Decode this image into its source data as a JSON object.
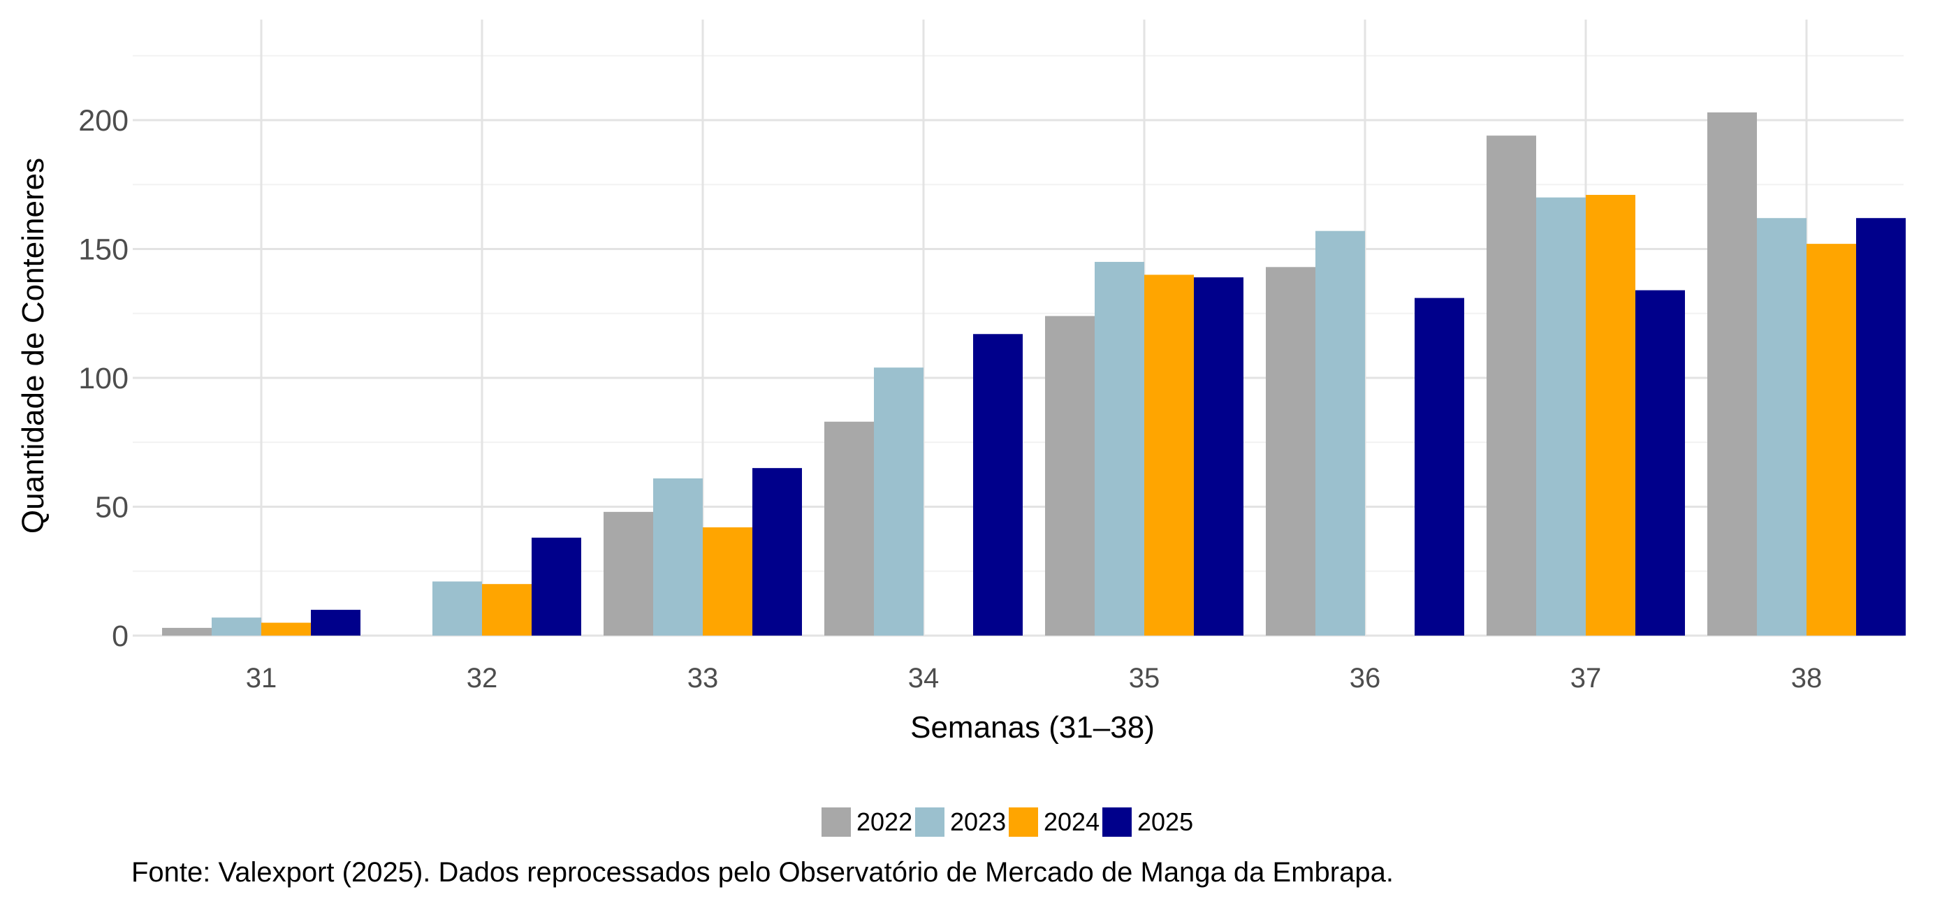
{
  "chart_data": {
    "type": "bar",
    "title": "",
    "xlabel": "Semanas (31–38)",
    "ylabel": "Quantidade de Conteineres",
    "categories": [
      "31",
      "32",
      "33",
      "34",
      "35",
      "36",
      "37",
      "38"
    ],
    "ylim": [
      0,
      230
    ],
    "yticks": [
      0,
      50,
      100,
      150,
      200
    ],
    "grid": true,
    "legend_position": "bottom",
    "series": [
      {
        "name": "2022",
        "color": "#A8A8A8",
        "values": [
          3,
          null,
          48,
          83,
          124,
          143,
          194,
          203
        ]
      },
      {
        "name": "2023",
        "color": "#9BC0CE",
        "values": [
          7,
          21,
          61,
          104,
          145,
          157,
          170,
          162
        ]
      },
      {
        "name": "2024",
        "color": "#FFA500",
        "values": [
          5,
          20,
          42,
          null,
          140,
          null,
          171,
          152
        ]
      },
      {
        "name": "2025",
        "color": "#00008B",
        "values": [
          10,
          38,
          65,
          117,
          139,
          131,
          134,
          162
        ]
      }
    ],
    "caption": "Fonte: Valexport (2025). Dados reprocessados pelo Observatório de Mercado de Manga da Embrapa."
  }
}
